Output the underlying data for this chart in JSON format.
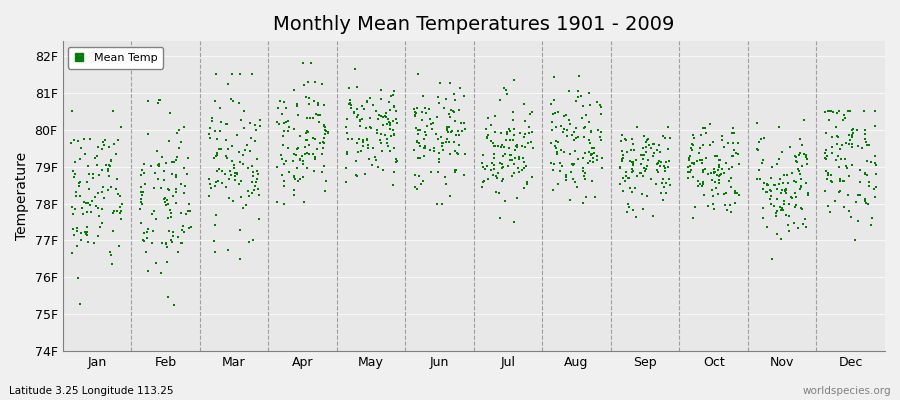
{
  "title": "Monthly Mean Temperatures 1901 - 2009",
  "ylabel": "Temperature",
  "bottom_left_label": "Latitude 3.25 Longitude 113.25",
  "bottom_right_label": "worldspecies.org",
  "marker_color": "#008000",
  "marker_size": 3,
  "background_color": "#e8e8e8",
  "ylim": [
    74,
    82.4
  ],
  "yticks": [
    74,
    75,
    76,
    77,
    78,
    79,
    80,
    81,
    82
  ],
  "ytick_labels": [
    "74F",
    "75F",
    "76F",
    "77F",
    "78F",
    "79F",
    "80F",
    "81F",
    "82F"
  ],
  "months": [
    "Jan",
    "Feb",
    "Mar",
    "Apr",
    "May",
    "Jun",
    "Jul",
    "Aug",
    "Sep",
    "Oct",
    "Nov",
    "Dec"
  ],
  "num_years": 109,
  "seed": 42,
  "mean_temps_by_month": [
    {
      "month": 1,
      "mean": 78.2,
      "std": 1.1,
      "min": 74.5,
      "max": 80.5
    },
    {
      "month": 2,
      "mean": 78.0,
      "std": 1.3,
      "min": 74.8,
      "max": 80.8
    },
    {
      "month": 3,
      "mean": 79.2,
      "std": 1.0,
      "min": 76.5,
      "max": 81.5
    },
    {
      "month": 4,
      "mean": 79.8,
      "std": 0.85,
      "min": 78.0,
      "max": 81.8
    },
    {
      "month": 5,
      "mean": 80.0,
      "std": 0.7,
      "min": 78.5,
      "max": 82.1
    },
    {
      "month": 6,
      "mean": 79.7,
      "std": 0.75,
      "min": 78.0,
      "max": 81.5
    },
    {
      "month": 7,
      "mean": 79.5,
      "std": 0.75,
      "min": 77.5,
      "max": 81.5
    },
    {
      "month": 8,
      "mean": 79.5,
      "std": 0.75,
      "min": 77.5,
      "max": 81.5
    },
    {
      "month": 9,
      "mean": 79.0,
      "std": 0.6,
      "min": 77.5,
      "max": 80.5
    },
    {
      "month": 10,
      "mean": 79.0,
      "std": 0.65,
      "min": 77.5,
      "max": 80.5
    },
    {
      "month": 11,
      "mean": 78.5,
      "std": 0.8,
      "min": 76.5,
      "max": 80.5
    },
    {
      "month": 12,
      "mean": 79.2,
      "std": 0.9,
      "min": 77.0,
      "max": 80.5
    }
  ]
}
